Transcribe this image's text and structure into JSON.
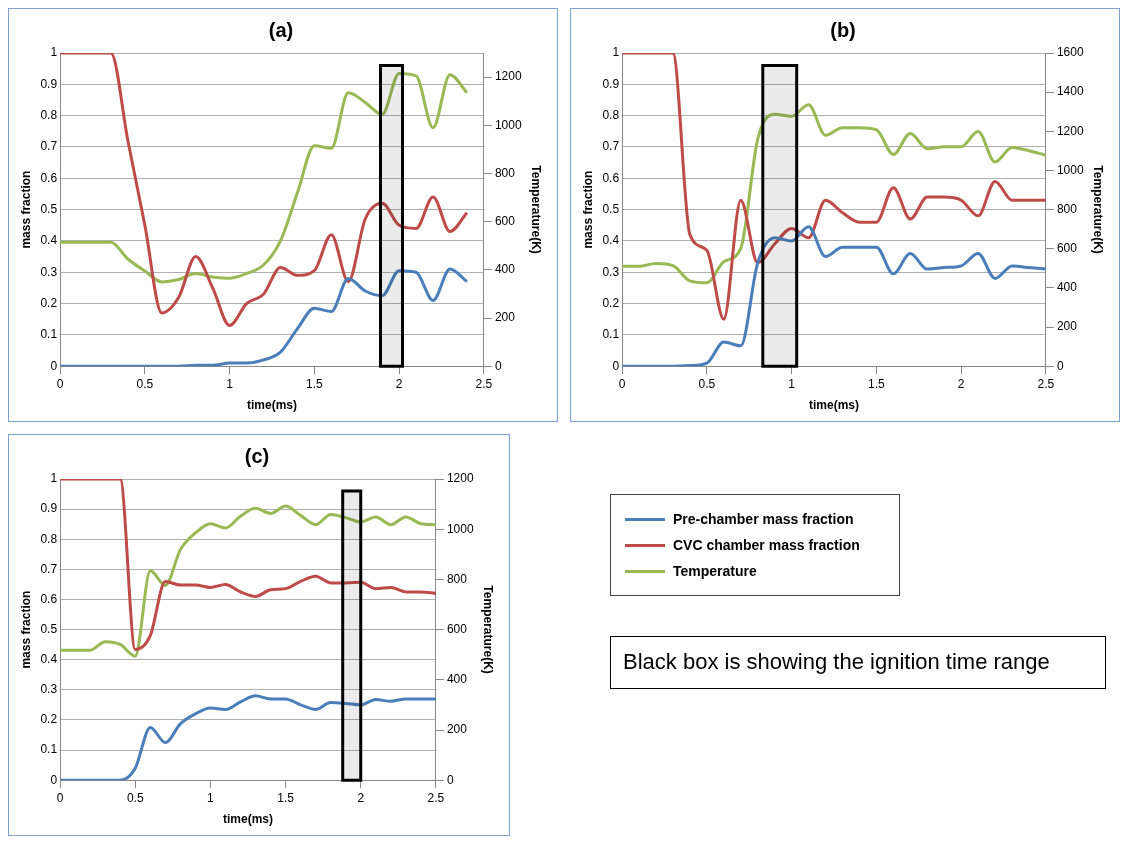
{
  "chart_data": [
    {
      "type": "line",
      "title": "(a)",
      "xlabel": "time(ms)",
      "ylabel": "mass fraction",
      "y2label": "Temperature(K)",
      "x": [
        0,
        0.1,
        0.2,
        0.3,
        0.4,
        0.5,
        0.6,
        0.7,
        0.8,
        0.9,
        1,
        1.1,
        1.2,
        1.3,
        1.4,
        1.5,
        1.6,
        1.7,
        1.8,
        1.9,
        2,
        2.1,
        2.2,
        2.3,
        2.4
      ],
      "series": [
        {
          "color": "#4a7ebb",
          "values": [
            0,
            0,
            0,
            0,
            0,
            0,
            0,
            0,
            0.003,
            0.003,
            0.01,
            0.01,
            0.02,
            0.045,
            0.12,
            0.185,
            0.175,
            0.28,
            0.24,
            0.225,
            0.305,
            0.3,
            0.21,
            0.31,
            0.27
          ]
        },
        {
          "color": "#be4b48",
          "values": [
            1,
            1,
            1,
            1,
            0.72,
            0.45,
            0.17,
            0.22,
            0.35,
            0.25,
            0.13,
            0.2,
            0.23,
            0.315,
            0.29,
            0.305,
            0.42,
            0.27,
            0.47,
            0.52,
            0.45,
            0.44,
            0.54,
            0.43,
            0.49
          ]
        },
        {
          "color": "#98b954",
          "axis": "y2",
          "values": [
            515,
            515,
            515,
            515,
            445,
            395,
            350,
            360,
            385,
            370,
            365,
            385,
            420,
            520,
            720,
            915,
            905,
            1135,
            1095,
            1045,
            1215,
            1205,
            990,
            1210,
            1135
          ]
        }
      ],
      "xlim": [
        0,
        2.5
      ],
      "xticks": [
        0,
        0.5,
        1,
        1.5,
        2,
        2.5
      ],
      "ylim": [
        0,
        1
      ],
      "yticks": [
        0,
        0.1,
        0.2,
        0.3,
        0.4,
        0.5,
        0.6,
        0.7,
        0.8,
        0.9,
        1
      ],
      "y2lim": [
        0,
        1300
      ],
      "y2ticks": [
        0,
        200,
        400,
        600,
        800,
        1000,
        1200
      ],
      "bands": [
        {
          "axis": "x",
          "from": 1.89,
          "to": 2.02,
          "color": "#000000"
        }
      ],
      "grid": "y"
    },
    {
      "type": "line",
      "title": "(b)",
      "xlabel": "time(ms)",
      "ylabel": "mass fraction",
      "y2label": "Temperature(K)",
      "x": [
        0,
        0.1,
        0.2,
        0.3,
        0.4,
        0.5,
        0.6,
        0.7,
        0.8,
        0.9,
        1,
        1.1,
        1.2,
        1.3,
        1.4,
        1.5,
        1.6,
        1.7,
        1.8,
        1.9,
        2,
        2.1,
        2.2,
        2.3,
        2.4,
        2.5
      ],
      "series": [
        {
          "color": "#4a7ebb",
          "values": [
            0,
            0,
            0,
            0,
            0.002,
            0.01,
            0.077,
            0.065,
            0.33,
            0.41,
            0.4,
            0.445,
            0.35,
            0.38,
            0.38,
            0.38,
            0.295,
            0.36,
            0.31,
            0.315,
            0.32,
            0.36,
            0.28,
            0.32,
            0.315,
            0.31
          ]
        },
        {
          "color": "#be4b48",
          "values": [
            1,
            1,
            1,
            1,
            0.42,
            0.37,
            0.15,
            0.53,
            0.33,
            0.39,
            0.44,
            0.41,
            0.53,
            0.49,
            0.46,
            0.46,
            0.57,
            0.47,
            0.54,
            0.54,
            0.53,
            0.48,
            0.59,
            0.53,
            0.53,
            0.53
          ]
        },
        {
          "color": "#98b954",
          "axis": "y2",
          "values": [
            510,
            510,
            525,
            514,
            436,
            426,
            534,
            602,
            1160,
            1287,
            1277,
            1336,
            1180,
            1218,
            1218,
            1208,
            1082,
            1189,
            1111,
            1121,
            1121,
            1199,
            1043,
            1117,
            1101,
            1078
          ]
        }
      ],
      "xlim": [
        0,
        2.5
      ],
      "xticks": [
        0,
        0.5,
        1,
        1.5,
        2,
        2.5
      ],
      "ylim": [
        0,
        1
      ],
      "yticks": [
        0,
        0.1,
        0.2,
        0.3,
        0.4,
        0.5,
        0.6,
        0.7,
        0.8,
        0.9,
        1
      ],
      "y2lim": [
        0,
        1600
      ],
      "y2ticks": [
        0,
        200,
        400,
        600,
        800,
        1000,
        1200,
        1400,
        1600
      ],
      "bands": [
        {
          "axis": "x",
          "from": 0.83,
          "to": 1.03,
          "color": "#000000"
        }
      ],
      "grid": "y"
    },
    {
      "type": "line",
      "title": "(c)",
      "xlabel": "time(ms)",
      "ylabel": "mass fraction",
      "y2label": "Temperature(K)",
      "x": [
        0,
        0.1,
        0.2,
        0.3,
        0.4,
        0.5,
        0.6,
        0.7,
        0.8,
        0.9,
        1,
        1.1,
        1.2,
        1.3,
        1.4,
        1.5,
        1.6,
        1.7,
        1.8,
        1.9,
        2,
        2.1,
        2.2,
        2.3,
        2.4,
        2.5
      ],
      "series": [
        {
          "name": "Pre-chamber mass fraction",
          "color": "#4a7ebb",
          "values": [
            0,
            0,
            0,
            0,
            0,
            0.04,
            0.175,
            0.125,
            0.187,
            0.22,
            0.24,
            0.235,
            0.26,
            0.28,
            0.27,
            0.27,
            0.25,
            0.235,
            0.258,
            0.255,
            0.25,
            0.268,
            0.262,
            0.27,
            0.27,
            0.27
          ]
        },
        {
          "name": "CVC chamber mass fraction",
          "color": "#be4b48",
          "values": [
            1,
            1,
            1,
            1,
            1,
            0.434,
            0.48,
            0.66,
            0.648,
            0.648,
            0.64,
            0.65,
            0.625,
            0.61,
            0.632,
            0.636,
            0.66,
            0.677,
            0.655,
            0.655,
            0.657,
            0.636,
            0.64,
            0.625,
            0.625,
            0.62
          ]
        },
        {
          "name": "Temperature",
          "color": "#98b954",
          "axis": "y2",
          "values": [
            518,
            518,
            518,
            552,
            541,
            494,
            834,
            776,
            918,
            985,
            1022,
            1005,
            1052,
            1083,
            1063,
            1092,
            1055,
            1018,
            1059,
            1046,
            1029,
            1049,
            1018,
            1049,
            1022,
            1018
          ]
        }
      ],
      "xlim": [
        0,
        2.5
      ],
      "xticks": [
        0,
        0.5,
        1,
        1.5,
        2,
        2.5
      ],
      "ylim": [
        0,
        1
      ],
      "yticks": [
        0,
        0.1,
        0.2,
        0.3,
        0.4,
        0.5,
        0.6,
        0.7,
        0.8,
        0.9,
        1
      ],
      "y2lim": [
        0,
        1200
      ],
      "y2ticks": [
        0,
        200,
        400,
        600,
        800,
        1000,
        1200
      ],
      "bands": [
        {
          "axis": "x",
          "from": 1.88,
          "to": 2.0,
          "color": "#000000"
        }
      ],
      "annotations": [
        "Black box is showing the ignition time range"
      ],
      "grid": "y",
      "legend": "right"
    }
  ]
}
